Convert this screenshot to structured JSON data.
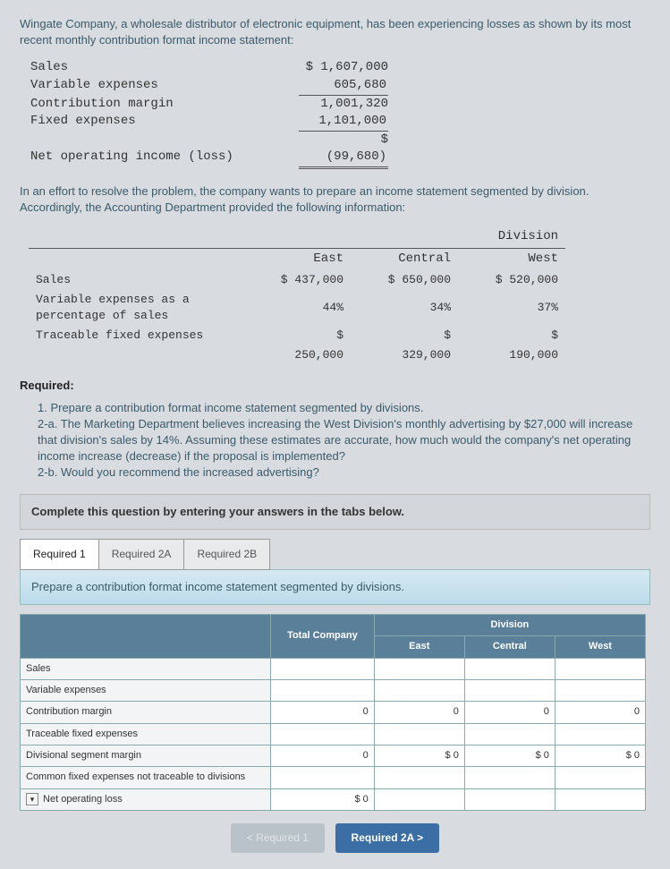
{
  "intro": "Wingate Company, a wholesale distributor of electronic equipment, has been experiencing losses as shown by its most recent monthly contribution format income statement:",
  "stmt": {
    "rows": [
      {
        "label": "Sales",
        "value": "$ 1,607,000",
        "style": "plain"
      },
      {
        "label": "Variable expenses",
        "value": "605,680",
        "style": "single"
      },
      {
        "label": "Contribution margin",
        "value": "1,001,320",
        "style": "plain"
      },
      {
        "label": "Fixed expenses",
        "value": "1,101,000",
        "style": "single"
      },
      {
        "label": "",
        "value": "$",
        "style": "plain"
      },
      {
        "label": "Net operating income (loss)",
        "value": "(99,680)",
        "style": "double"
      }
    ]
  },
  "para2": "In an effort to resolve the problem, the company wants to prepare an income statement segmented by division. Accordingly, the Accounting Department provided the following information:",
  "div": {
    "header_span": "Division",
    "cols": [
      "East",
      "Central",
      "West"
    ],
    "rows": [
      {
        "label": "Sales",
        "vals": [
          "$ 437,000",
          "$ 650,000",
          "$ 520,000"
        ]
      },
      {
        "label": "Variable expenses as a percentage of sales",
        "vals": [
          "44%",
          "34%",
          "37%"
        ]
      },
      {
        "label": "Traceable fixed expenses",
        "vals": [
          "$\n250,000",
          "$\n329,000",
          "$\n190,000"
        ]
      }
    ]
  },
  "req_title": "Required:",
  "reqs": [
    "1. Prepare a contribution format income statement segmented by divisions.",
    "2-a. The Marketing Department believes increasing the West Division's monthly advertising by $27,000 will increase that division's sales by 14%. Assuming these estimates are accurate, how much would the company's net operating income increase (decrease) if the proposal is implemented?",
    "2-b. Would you recommend the increased advertising?"
  ],
  "complete": "Complete this question by entering your answers in the tabs below.",
  "tabs": [
    "Required 1",
    "Required 2A",
    "Required 2B"
  ],
  "active_tab": 0,
  "prepare": "Prepare a contribution format income statement segmented by divisions.",
  "ans": {
    "top_header_span": "Division",
    "cols": [
      "Total Company",
      "East",
      "Central",
      "West"
    ],
    "rows": [
      {
        "label": "Sales",
        "cells": [
          "",
          "",
          "",
          ""
        ]
      },
      {
        "label": "Variable expenses",
        "cells": [
          "",
          "",
          "",
          ""
        ]
      },
      {
        "label": "Contribution margin",
        "cells": [
          "0",
          "0",
          "0",
          "0"
        ]
      },
      {
        "label": "Traceable fixed expenses",
        "cells": [
          "",
          "",
          "",
          ""
        ]
      },
      {
        "label": "Divisional segment margin",
        "cells": [
          "0",
          "$        0",
          "$        0",
          "$        0"
        ]
      },
      {
        "label": "Common fixed expenses not traceable to divisions",
        "cells": [
          "",
          "",
          "",
          ""
        ]
      },
      {
        "label": "Net operating loss",
        "cells": [
          "$        0",
          "",
          "",
          ""
        ],
        "dd": true
      }
    ]
  },
  "nav": {
    "prev": "<  Required 1",
    "next": "Required 2A  >"
  }
}
